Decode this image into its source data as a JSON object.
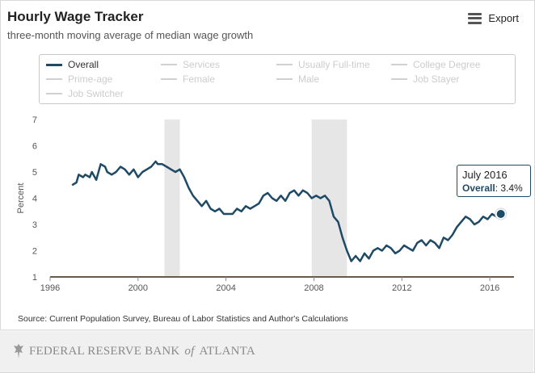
{
  "header": {
    "title": "Hourly Wage Tracker",
    "subtitle": "three-month moving average of median wage growth",
    "export_label": "Export",
    "export_icon": "hamburger-menu-icon"
  },
  "legend": {
    "items": [
      {
        "label": "Overall",
        "active": true
      },
      {
        "label": "Services",
        "active": false
      },
      {
        "label": "Usually Full-time",
        "active": false
      },
      {
        "label": "College Degree",
        "active": false
      },
      {
        "label": "Prime-age",
        "active": false
      },
      {
        "label": "Female",
        "active": false
      },
      {
        "label": "Male",
        "active": false
      },
      {
        "label": "Job Stayer",
        "active": false
      },
      {
        "label": "Job Switcher",
        "active": false
      }
    ]
  },
  "tooltip": {
    "date": "July 2016",
    "series": "Overall",
    "value": "3.4%"
  },
  "source": "Source: Current Population Survey, Bureau of Labor Statistics and Author's Calculations",
  "footer": {
    "logo_text_a": "FEDERAL RESERVE BANK",
    "logo_text_of": "of",
    "logo_text_b": "ATLANTA",
    "logo_icon": "eagle-icon"
  },
  "colors": {
    "series": "#1f4a66",
    "recession": "#e6e6e6",
    "axis": "#555555",
    "disabled": "#cccccc"
  },
  "chart_data": {
    "type": "line",
    "ylabel": "Percent",
    "xlabel": "",
    "xlim": [
      1996,
      2017.1
    ],
    "ylim": [
      1,
      7
    ],
    "xticks": [
      1996,
      2000,
      2004,
      2008,
      2012,
      2016
    ],
    "yticks": [
      1,
      2,
      3,
      4,
      5,
      6,
      7
    ],
    "grid": false,
    "recessions": [
      [
        2001.2,
        2001.9
      ],
      [
        2007.9,
        2009.5
      ]
    ],
    "highlight": {
      "x": 2016.5,
      "y": 3.4
    },
    "series": [
      {
        "name": "Overall",
        "x": [
          1997.0,
          1997.2,
          1997.3,
          1997.5,
          1997.6,
          1997.8,
          1997.9,
          1998.1,
          1998.3,
          1998.5,
          1998.6,
          1998.8,
          1999.0,
          1999.2,
          1999.4,
          1999.6,
          1999.8,
          2000.0,
          2000.2,
          2000.4,
          2000.6,
          2000.8,
          2000.9,
          2001.1,
          2001.3,
          2001.5,
          2001.7,
          2001.9,
          2002.1,
          2002.3,
          2002.5,
          2002.7,
          2002.9,
          2003.1,
          2003.3,
          2003.5,
          2003.7,
          2003.9,
          2004.1,
          2004.3,
          2004.5,
          2004.7,
          2004.9,
          2005.1,
          2005.3,
          2005.5,
          2005.7,
          2005.9,
          2006.1,
          2006.3,
          2006.5,
          2006.7,
          2006.9,
          2007.1,
          2007.3,
          2007.5,
          2007.7,
          2007.9,
          2008.1,
          2008.3,
          2008.5,
          2008.7,
          2008.9,
          2009.1,
          2009.3,
          2009.5,
          2009.7,
          2009.9,
          2010.1,
          2010.3,
          2010.5,
          2010.7,
          2010.9,
          2011.1,
          2011.3,
          2011.5,
          2011.7,
          2011.9,
          2012.1,
          2012.3,
          2012.5,
          2012.7,
          2012.9,
          2013.1,
          2013.3,
          2013.5,
          2013.7,
          2013.9,
          2014.1,
          2014.3,
          2014.5,
          2014.7,
          2014.9,
          2015.1,
          2015.3,
          2015.5,
          2015.7,
          2015.9,
          2016.1,
          2016.3,
          2016.5
        ],
        "y": [
          4.5,
          4.6,
          4.9,
          4.8,
          4.9,
          4.8,
          5.0,
          4.7,
          5.3,
          5.2,
          5.0,
          4.9,
          5.0,
          5.2,
          5.1,
          4.9,
          5.1,
          4.8,
          5.0,
          5.1,
          5.2,
          5.4,
          5.3,
          5.3,
          5.2,
          5.1,
          5.0,
          5.1,
          4.8,
          4.4,
          4.1,
          3.9,
          3.7,
          3.9,
          3.6,
          3.5,
          3.6,
          3.4,
          3.4,
          3.4,
          3.6,
          3.5,
          3.7,
          3.6,
          3.7,
          3.8,
          4.1,
          4.2,
          4.0,
          3.9,
          4.1,
          3.9,
          4.2,
          4.3,
          4.1,
          4.3,
          4.2,
          4.0,
          4.1,
          4.0,
          4.1,
          3.9,
          3.3,
          3.1,
          2.5,
          2.0,
          1.6,
          1.8,
          1.6,
          1.9,
          1.7,
          2.0,
          2.1,
          2.0,
          2.2,
          2.1,
          1.9,
          2.0,
          2.2,
          2.1,
          2.0,
          2.3,
          2.4,
          2.2,
          2.4,
          2.3,
          2.1,
          2.5,
          2.4,
          2.6,
          2.9,
          3.1,
          3.3,
          3.2,
          3.0,
          3.1,
          3.3,
          3.2,
          3.4,
          3.3,
          3.4
        ]
      }
    ]
  }
}
